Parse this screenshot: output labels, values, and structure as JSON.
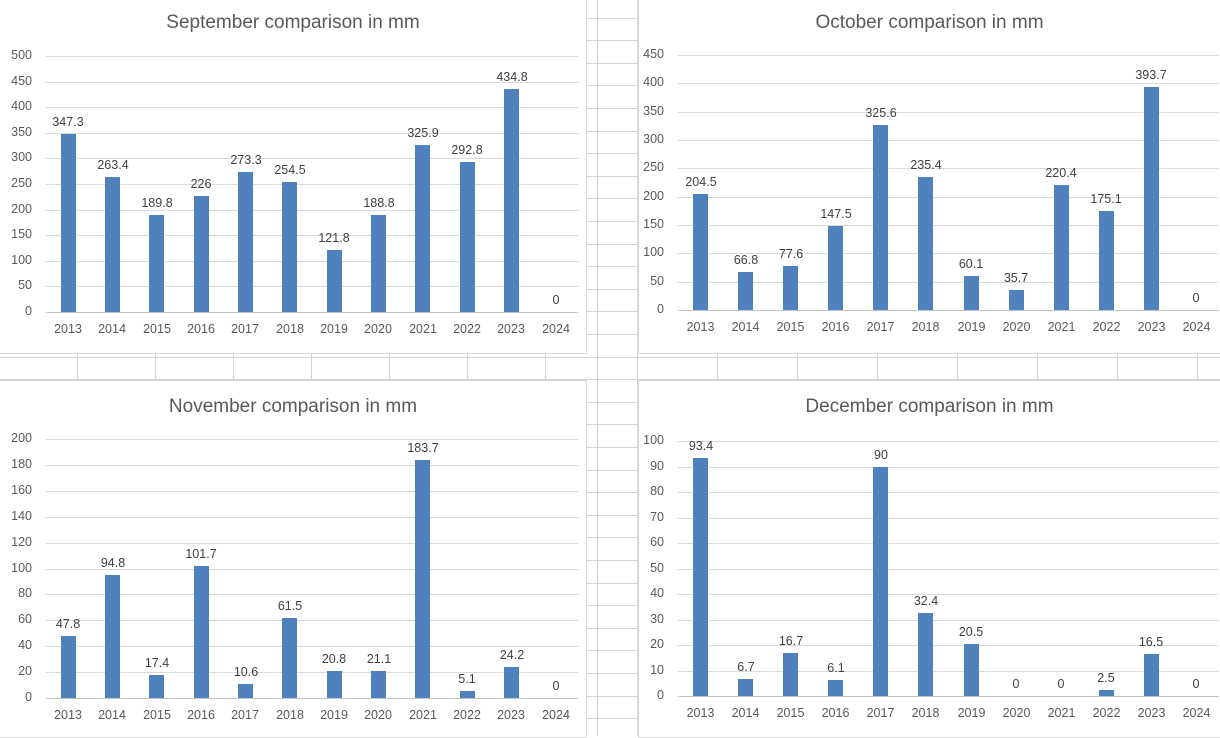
{
  "app": {
    "kind": "spreadsheet-embedded-charts",
    "background_color": "#ffffff",
    "worksheet_gridline_color": "#d4d4d4"
  },
  "colors": {
    "bar_fill": "#4f81bd",
    "chart_gridline": "#dadada",
    "axis_line": "#c3c3c3",
    "axis_text": "#595959",
    "title_text": "#595959",
    "data_label_text": "#3f3f3f",
    "chart_border": "#d9d9d9"
  },
  "chart_data": [
    {
      "type": "bar",
      "title": "September comparison in mm",
      "categories": [
        "2013",
        "2014",
        "2015",
        "2016",
        "2017",
        "2018",
        "2019",
        "2020",
        "2021",
        "2022",
        "2023",
        "2024"
      ],
      "values": [
        347.3,
        263.4,
        189.8,
        226,
        273.3,
        254.5,
        121.8,
        188.8,
        325.9,
        292.8,
        434.8,
        0
      ],
      "xlabel": "",
      "ylabel": "",
      "ylim": [
        0,
        500
      ],
      "ytick_step": 50,
      "grid": true,
      "data_labels": true,
      "legend": "none"
    },
    {
      "type": "bar",
      "title": "October comparison in mm",
      "categories": [
        "2013",
        "2014",
        "2015",
        "2016",
        "2017",
        "2018",
        "2019",
        "2020",
        "2021",
        "2022",
        "2023",
        "2024"
      ],
      "values": [
        204.5,
        66.8,
        77.6,
        147.5,
        325.6,
        235.4,
        60.1,
        35.7,
        220.4,
        175.1,
        393.7,
        0
      ],
      "xlabel": "",
      "ylabel": "",
      "ylim": [
        0,
        450
      ],
      "ytick_step": 50,
      "grid": true,
      "data_labels": true,
      "legend": "none"
    },
    {
      "type": "bar",
      "title": "November comparison in mm",
      "categories": [
        "2013",
        "2014",
        "2015",
        "2016",
        "2017",
        "2018",
        "2019",
        "2020",
        "2021",
        "2022",
        "2023",
        "2024"
      ],
      "values": [
        47.8,
        94.8,
        17.4,
        101.7,
        10.6,
        61.5,
        20.8,
        21.1,
        183.7,
        5.1,
        24.2,
        0
      ],
      "xlabel": "",
      "ylabel": "",
      "ylim": [
        0,
        200
      ],
      "ytick_step": 20,
      "grid": true,
      "data_labels": true,
      "legend": "none"
    },
    {
      "type": "bar",
      "title": "December comparison in mm",
      "categories": [
        "2013",
        "2014",
        "2015",
        "2016",
        "2017",
        "2018",
        "2019",
        "2020",
        "2021",
        "2022",
        "2023",
        "2024"
      ],
      "values": [
        93.4,
        6.7,
        16.7,
        6.1,
        90,
        32.4,
        20.5,
        0,
        0,
        2.5,
        16.5,
        0
      ],
      "xlabel": "",
      "ylabel": "",
      "ylim": [
        0,
        100
      ],
      "ytick_step": 10,
      "grid": true,
      "data_labels": true,
      "legend": "none"
    }
  ]
}
